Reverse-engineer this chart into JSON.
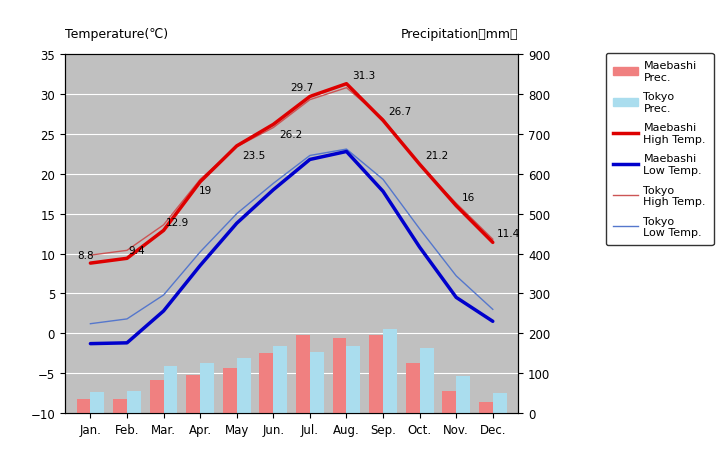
{
  "months": [
    "Jan.",
    "Feb.",
    "Mar.",
    "Apr.",
    "May",
    "Jun.",
    "Jul.",
    "Aug.",
    "Sep.",
    "Oct.",
    "Nov.",
    "Dec."
  ],
  "x": [
    1,
    2,
    3,
    4,
    5,
    6,
    7,
    8,
    9,
    10,
    11,
    12
  ],
  "maebashi_high": [
    8.8,
    9.4,
    12.9,
    19.0,
    23.5,
    26.2,
    29.7,
    31.3,
    26.7,
    21.2,
    16.0,
    11.4
  ],
  "maebashi_low": [
    -1.3,
    -1.2,
    2.8,
    8.5,
    13.8,
    18.0,
    21.8,
    22.8,
    17.8,
    10.8,
    4.5,
    1.5
  ],
  "tokyo_high": [
    9.8,
    10.4,
    13.6,
    19.3,
    23.4,
    25.8,
    29.3,
    30.8,
    26.9,
    21.1,
    16.3,
    11.8
  ],
  "tokyo_low": [
    1.2,
    1.8,
    4.8,
    10.2,
    15.0,
    18.8,
    22.3,
    23.1,
    19.3,
    13.1,
    7.2,
    3.0
  ],
  "maebashi_prec_mm": [
    34.0,
    36.0,
    82.0,
    95.0,
    113.0,
    150.0,
    196.0,
    188.0,
    195.0,
    125.0,
    56.0,
    28.0
  ],
  "tokyo_prec_mm": [
    52.0,
    56.0,
    117.0,
    124.5,
    137.8,
    167.7,
    153.5,
    168.2,
    209.9,
    163.3,
    92.5,
    51.0
  ],
  "temp_ylim_min": -10,
  "temp_ylim_max": 35,
  "prec_ylim_min": 0,
  "prec_ylim_max": 900,
  "maebashi_high_color": "#dd0000",
  "maebashi_low_color": "#0000cc",
  "tokyo_high_color": "#cc5555",
  "tokyo_low_color": "#5577cc",
  "maebashi_prec_color": "#f08080",
  "tokyo_prec_color": "#aaddee",
  "bg_color": "#c0c0c0",
  "ann_high": [
    8.8,
    9.4,
    12.9,
    19.0,
    23.5,
    26.2,
    29.7,
    31.3,
    26.7,
    21.2,
    16.0,
    11.4
  ],
  "title_left": "Temperature(℃)",
  "title_right": "Precipitation（mm）"
}
